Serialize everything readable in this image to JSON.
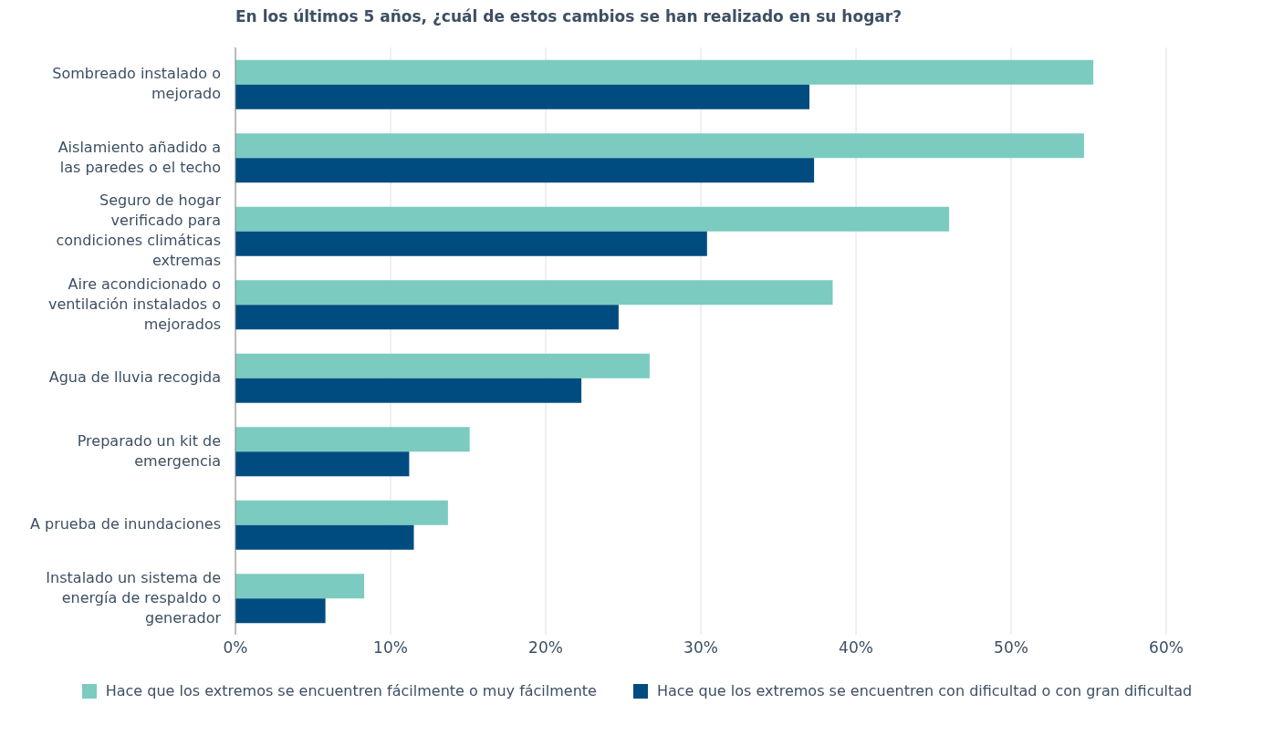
{
  "chart_data": {
    "type": "bar",
    "orientation": "horizontal",
    "title": "En los últimos 5 años, ¿cuál de estos cambios se han realizado en su hogar?",
    "categories": [
      "Sombreado instalado o mejorado",
      "Aislamiento añadido a las paredes o el techo",
      "Seguro de hogar verificado para condiciones climáticas extremas",
      "Aire acondicionado o ventilación instalados o mejorados",
      "Agua de lluvia recogida",
      "Preparado un kit de emergencia",
      "A prueba de inundaciones",
      "Instalado un sistema de energía de respaldo o generador"
    ],
    "series": [
      {
        "name": "Hace que los extremos se encuentren fácilmente o muy fácilmente",
        "color": "#7bcbc0",
        "values": [
          55.3,
          54.7,
          46.0,
          38.5,
          26.7,
          15.1,
          13.7,
          8.3
        ]
      },
      {
        "name": "Hace que los extremos se encuentren con dificultad o con gran dificultad",
        "color": "#004c80",
        "values": [
          37.0,
          37.3,
          30.4,
          24.7,
          22.3,
          11.2,
          11.5,
          5.8
        ]
      }
    ],
    "xlim": [
      0,
      60
    ],
    "xticks": [
      {
        "value": 0,
        "label": "0%"
      },
      {
        "value": 10,
        "label": "10%"
      },
      {
        "value": 20,
        "label": "20%"
      },
      {
        "value": 30,
        "label": "30%"
      },
      {
        "value": 40,
        "label": "40%"
      },
      {
        "value": 50,
        "label": "50%"
      },
      {
        "value": 60,
        "label": "60%"
      }
    ],
    "grid": "x",
    "legend": "bottom"
  }
}
